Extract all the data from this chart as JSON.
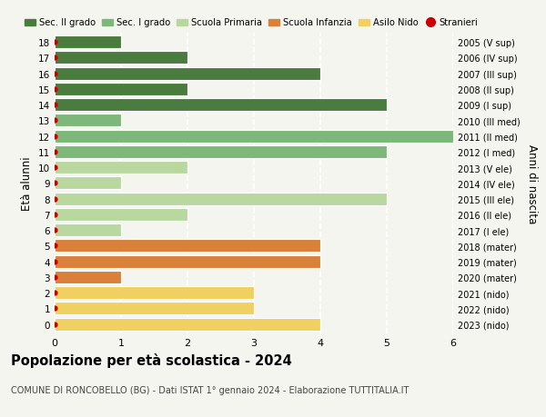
{
  "ages": [
    18,
    17,
    16,
    15,
    14,
    13,
    12,
    11,
    10,
    9,
    8,
    7,
    6,
    5,
    4,
    3,
    2,
    1,
    0
  ],
  "right_labels": [
    "2005 (V sup)",
    "2006 (IV sup)",
    "2007 (III sup)",
    "2008 (II sup)",
    "2009 (I sup)",
    "2010 (III med)",
    "2011 (II med)",
    "2012 (I med)",
    "2013 (V ele)",
    "2014 (IV ele)",
    "2015 (III ele)",
    "2016 (II ele)",
    "2017 (I ele)",
    "2018 (mater)",
    "2019 (mater)",
    "2020 (mater)",
    "2021 (nido)",
    "2022 (nido)",
    "2023 (nido)"
  ],
  "bar_values": [
    1,
    2,
    4,
    2,
    5,
    1,
    6,
    5,
    2,
    1,
    5,
    2,
    1,
    4,
    4,
    1,
    3,
    3,
    4
  ],
  "bar_colors": [
    "#4a7c3f",
    "#4a7c3f",
    "#4a7c3f",
    "#4a7c3f",
    "#4a7c3f",
    "#7db87a",
    "#7db87a",
    "#7db87a",
    "#b8d8a0",
    "#b8d8a0",
    "#b8d8a0",
    "#b8d8a0",
    "#b8d8a0",
    "#d9813a",
    "#d9813a",
    "#d9813a",
    "#f0d060",
    "#f0d060",
    "#f0d060"
  ],
  "stranieri_dots": [
    18,
    17,
    16,
    15,
    14,
    13,
    12,
    11,
    10,
    9,
    8,
    7,
    6,
    5,
    4,
    3,
    2,
    1,
    0
  ],
  "dot_color": "#cc0000",
  "legend_labels": [
    "Sec. II grado",
    "Sec. I grado",
    "Scuola Primaria",
    "Scuola Infanzia",
    "Asilo Nido",
    "Stranieri"
  ],
  "legend_colors": [
    "#4a7c3f",
    "#7db87a",
    "#b8d8a0",
    "#d9813a",
    "#f0d060",
    "#cc0000"
  ],
  "ylabel_left": "Età alunni",
  "ylabel_right": "Anni di nascita",
  "title": "Popolazione per età scolastica - 2024",
  "subtitle": "COMUNE DI RONCOBELLO (BG) - Dati ISTAT 1° gennaio 2024 - Elaborazione TUTTITALIA.IT",
  "xlim": [
    0,
    6
  ],
  "xticks": [
    0,
    1,
    2,
    3,
    4,
    5,
    6
  ],
  "background_color": "#f5f5f0",
  "grid_color": "#ffffff",
  "bar_edgecolor": "#ffffff",
  "bar_height": 0.82
}
